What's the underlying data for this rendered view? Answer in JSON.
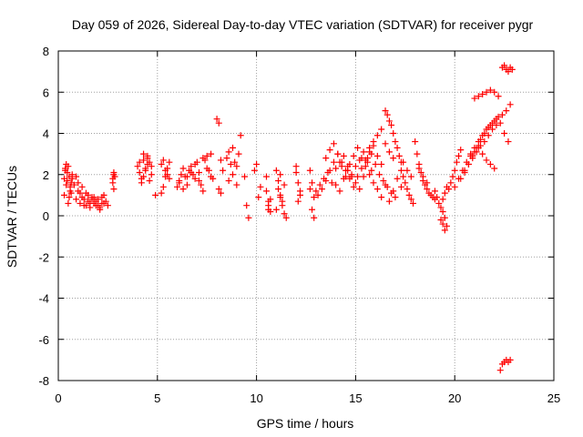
{
  "chart_data": {
    "type": "scatter",
    "title": "Day 059 of 2026, Sidereal Day-to-day VTEC variation (SDTVAR) for receiver pygr",
    "xlabel": "GPS time / hours",
    "ylabel": "SDTVAR / TECUs",
    "xlim": [
      0,
      25
    ],
    "ylim": [
      -8,
      8
    ],
    "xticks": [
      0,
      5,
      10,
      15,
      20,
      25
    ],
    "yticks": [
      -8,
      -6,
      -4,
      -2,
      0,
      2,
      4,
      6,
      8
    ],
    "grid": true,
    "marker": "+",
    "color": "#ff0000",
    "series": [
      {
        "name": "SDTVAR",
        "x": [
          0.3,
          0.35,
          0.4,
          0.45,
          0.5,
          0.55,
          0.6,
          0.65,
          0.7,
          0.3,
          0.4,
          0.5,
          0.6,
          0.7,
          0.35,
          0.45,
          0.55,
          0.65,
          0.8,
          0.9,
          1.0,
          1.1,
          1.2,
          1.3,
          1.4,
          1.5,
          1.6,
          1.7,
          1.8,
          1.9,
          2.0,
          2.1,
          2.2,
          2.3,
          2.4,
          2.5,
          0.9,
          1.0,
          1.1,
          1.2,
          1.3,
          1.4,
          1.5,
          1.6,
          1.7,
          1.8,
          1.9,
          2.0,
          2.1,
          2.2,
          2.3,
          2.75,
          2.8,
          2.85,
          2.8,
          2.75,
          2.8,
          4.0,
          4.1,
          4.2,
          4.3,
          4.4,
          4.5,
          4.6,
          4.7,
          4.2,
          4.3,
          4.4,
          4.5,
          4.6,
          4.1,
          4.3,
          4.5,
          4.7,
          4.9,
          5.2,
          5.3,
          5.4,
          5.5,
          5.6,
          5.3,
          5.4,
          5.5,
          5.2,
          5.6,
          6.0,
          6.1,
          6.2,
          6.3,
          6.4,
          6.5,
          6.6,
          6.7,
          6.8,
          6.9,
          7.0,
          7.1,
          7.2,
          7.3,
          7.4,
          7.5,
          7.6,
          7.7,
          7.8,
          6.1,
          6.3,
          6.5,
          6.7,
          6.9,
          7.1,
          7.3,
          7.5,
          7.7,
          8.0,
          8.1,
          8.2,
          8.3,
          8.1,
          8.2,
          8.5,
          8.6,
          8.7,
          8.8,
          8.9,
          9.0,
          9.1,
          8.6,
          8.8,
          9.0,
          9.2,
          9.4,
          9.5,
          9.6,
          9.9,
          10.0,
          10.1,
          10.2,
          10.5,
          10.6,
          10.7,
          10.6,
          10.5,
          10.7,
          10.6,
          11.0,
          11.1,
          11.2,
          11.3,
          11.4,
          11.5,
          11.1,
          11.3,
          11.2,
          11.4,
          11.0,
          11.2,
          12.0,
          12.1,
          12.2,
          12.1,
          12.0,
          12.2,
          12.7,
          12.8,
          12.9,
          12.8,
          12.7,
          12.9,
          13.0,
          13.2,
          13.4,
          13.6,
          13.8,
          14.0,
          14.2,
          14.4,
          14.6,
          14.8,
          15.0,
          15.2,
          15.4,
          15.6,
          15.8,
          16.0,
          16.2,
          16.4,
          16.6,
          16.8,
          17.0,
          13.1,
          13.3,
          13.5,
          13.7,
          13.9,
          14.1,
          14.3,
          14.5,
          14.7,
          14.9,
          15.1,
          15.3,
          15.5,
          15.7,
          15.9,
          16.1,
          16.3,
          16.5,
          16.7,
          16.9,
          13.5,
          13.7,
          13.9,
          14.1,
          14.3,
          14.5,
          14.7,
          14.9,
          15.1,
          15.3,
          15.5,
          15.7,
          15.9,
          16.1,
          16.3,
          14.0,
          14.2,
          14.4,
          14.6,
          14.8,
          15.0,
          15.2,
          15.4,
          15.6,
          15.8,
          15.7,
          15.9,
          16.1,
          16.3,
          16.5,
          16.7,
          16.9,
          17.1,
          17.3,
          16.5,
          16.6,
          16.7,
          16.8,
          16.9,
          17.0,
          17.1,
          17.2,
          17.3,
          17.3,
          17.4,
          17.5,
          17.6,
          17.7,
          17.8,
          17.9,
          17.4,
          17.6,
          17.8,
          18.0,
          18.1,
          18.2,
          18.3,
          18.4,
          18.5,
          18.6,
          18.7,
          18.8,
          18.9,
          19.0,
          18.2,
          18.4,
          18.6,
          19.0,
          19.1,
          19.2,
          19.3,
          19.4,
          19.5,
          19.6,
          19.7,
          19.8,
          19.9,
          20.0,
          20.1,
          20.2,
          20.3,
          19.3,
          19.4,
          19.5,
          19.6,
          19.5,
          19.4,
          20.0,
          20.2,
          20.4,
          20.6,
          20.8,
          21.0,
          21.2,
          21.4,
          21.6,
          21.8,
          22.0,
          22.2,
          22.4,
          22.6,
          22.8,
          20.3,
          20.5,
          20.7,
          20.9,
          21.1,
          21.3,
          21.5,
          21.7,
          21.9,
          22.1,
          20.5,
          20.7,
          20.9,
          21.1,
          21.3,
          21.5,
          21.7,
          21.9,
          22.1,
          22.3,
          22.5,
          22.7,
          20.8,
          21.0,
          21.2,
          21.4,
          21.6,
          21.8,
          22.0,
          21.0,
          21.2,
          21.4,
          21.6,
          21.8,
          22.0,
          22.2,
          22.4,
          22.5,
          22.6,
          22.7,
          22.8,
          22.9,
          22.3,
          22.4,
          22.5,
          22.6,
          22.7,
          22.8
        ],
        "y": [
          1.8,
          2.3,
          1.5,
          2.1,
          2.4,
          1.9,
          1.2,
          1.6,
          2.0,
          1.0,
          2.5,
          0.6,
          1.4,
          1.8,
          2.2,
          1.7,
          0.9,
          1.1,
          1.5,
          0.8,
          1.2,
          0.6,
          0.9,
          0.5,
          1.1,
          0.7,
          0.4,
          0.9,
          0.6,
          0.5,
          0.8,
          0.3,
          0.6,
          1.0,
          0.7,
          0.5,
          1.9,
          1.6,
          1.1,
          1.4,
          0.8,
          0.5,
          1.0,
          0.6,
          0.8,
          0.9,
          0.7,
          0.5,
          0.4,
          0.9,
          0.6,
          1.6,
          2.1,
          1.9,
          1.3,
          1.8,
          2.0,
          2.4,
          2.1,
          1.8,
          2.7,
          2.3,
          2.9,
          2.6,
          2.0,
          1.6,
          1.9,
          2.2,
          2.5,
          1.7,
          2.6,
          3.0,
          2.8,
          2.4,
          1.0,
          2.5,
          2.7,
          2.2,
          2.0,
          1.8,
          1.4,
          1.9,
          2.3,
          1.1,
          2.6,
          1.4,
          1.7,
          2.0,
          2.3,
          1.9,
          1.5,
          2.2,
          2.4,
          2.0,
          1.8,
          2.6,
          2.1,
          1.5,
          1.2,
          2.7,
          2.9,
          2.2,
          3.0,
          1.8,
          1.6,
          1.3,
          1.9,
          2.1,
          2.5,
          1.7,
          2.8,
          2.3,
          1.9,
          4.7,
          4.5,
          2.7,
          2.2,
          1.3,
          1.1,
          2.8,
          3.1,
          2.5,
          3.3,
          2.6,
          1.5,
          3.0,
          1.7,
          2.0,
          2.4,
          3.9,
          1.9,
          0.5,
          -0.1,
          2.2,
          2.5,
          0.9,
          1.4,
          1.9,
          0.7,
          0.2,
          0.5,
          1.2,
          0.8,
          0.3,
          2.2,
          1.7,
          1.0,
          0.5,
          0.1,
          -0.1,
          1.3,
          0.7,
          2.0,
          1.5,
          0.3,
          0.9,
          2.1,
          1.6,
          1.2,
          0.7,
          2.4,
          1.0,
          2.2,
          1.6,
          0.9,
          0.3,
          1.3,
          -0.1,
          1.2,
          1.5,
          1.8,
          2.1,
          1.6,
          2.3,
          2.6,
          2.9,
          2.2,
          1.9,
          2.4,
          2.7,
          3.1,
          2.8,
          2.2,
          2.5,
          2.0,
          1.7,
          1.4,
          1.1,
          0.9,
          1.0,
          1.3,
          1.7,
          2.2,
          2.6,
          3.0,
          2.4,
          1.9,
          2.5,
          2.9,
          3.3,
          2.8,
          2.4,
          2.0,
          1.6,
          1.3,
          0.9,
          1.5,
          0.7,
          1.2,
          2.8,
          3.2,
          3.5,
          3.0,
          2.6,
          2.2,
          1.8,
          1.4,
          1.9,
          2.3,
          2.7,
          3.1,
          3.4,
          2.9,
          2.5,
          1.5,
          1.2,
          1.8,
          2.4,
          2.0,
          1.6,
          1.3,
          1.9,
          2.6,
          3.0,
          3.3,
          3.6,
          3.9,
          4.2,
          3.5,
          3.1,
          2.8,
          1.8,
          1.4,
          5.1,
          4.9,
          4.6,
          4.4,
          4.0,
          3.6,
          3.3,
          2.9,
          2.6,
          2.2,
          1.9,
          1.6,
          1.3,
          1.0,
          0.8,
          0.6,
          2.6,
          2.2,
          1.9,
          3.6,
          3.0,
          2.5,
          2.1,
          1.7,
          1.5,
          1.3,
          1.1,
          1.0,
          0.9,
          0.8,
          2.3,
          1.9,
          1.6,
          1.2,
          0.9,
          0.6,
          0.4,
          0.8,
          1.1,
          1.4,
          1.3,
          1.6,
          1.9,
          2.2,
          2.6,
          2.9,
          3.2,
          -0.2,
          -0.4,
          -0.7,
          -0.5,
          -0.1,
          0.2,
          1.4,
          1.8,
          2.2,
          2.6,
          3.0,
          3.3,
          3.6,
          3.9,
          4.2,
          4.4,
          4.6,
          4.8,
          4.9,
          5.1,
          5.4,
          1.8,
          2.1,
          2.5,
          2.9,
          3.3,
          3.7,
          4.0,
          4.3,
          4.5,
          4.7,
          2.2,
          2.5,
          2.8,
          3.1,
          3.4,
          3.6,
          3.9,
          4.2,
          4.4,
          4.5,
          4.0,
          3.6,
          2.9,
          3.1,
          3.3,
          3.0,
          2.7,
          2.5,
          2.3,
          5.7,
          5.8,
          5.9,
          6.0,
          6.1,
          6.0,
          5.8,
          7.2,
          7.3,
          7.1,
          7.0,
          7.2,
          7.1,
          -7.5,
          -7.2,
          -7.1,
          -7.0,
          -7.1,
          -7.0
        ]
      }
    ]
  }
}
